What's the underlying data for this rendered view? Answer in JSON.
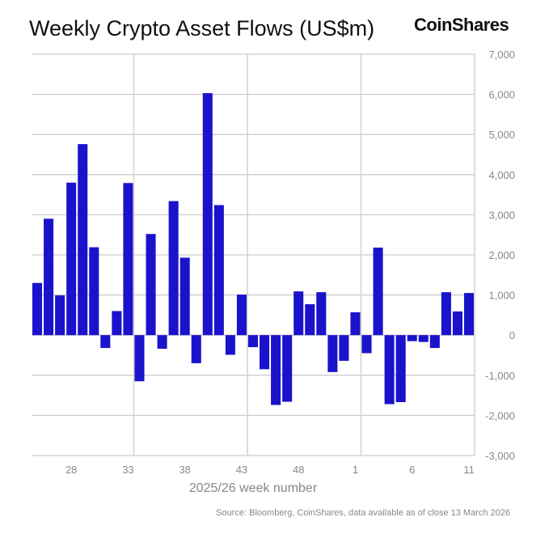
{
  "brand": "CoinShares",
  "source": "Source: Bloomberg, CoinShares, data available as of close 13 March 2026",
  "colors": {
    "bar": "#1b12cc",
    "grid": "#cccccc",
    "text": "#888888"
  },
  "chart_data": {
    "type": "bar",
    "title": "Weekly Crypto Asset Flows (US$m)",
    "xlabel": "2025/26 week number",
    "ylabel": "",
    "ylim": [
      -3000,
      7000
    ],
    "y_ticks": [
      -3000,
      -2000,
      -1000,
      0,
      1000,
      2000,
      3000,
      4000,
      5000,
      6000,
      7000
    ],
    "y_tick_labels": [
      "-3,000",
      "-2,000",
      "-1,000",
      "0",
      "1,000",
      "2,000",
      "3,000",
      "4,000",
      "5,000",
      "6,000",
      "7,000"
    ],
    "x_tick_labels": [
      "28",
      "33",
      "38",
      "43",
      "48",
      "1",
      "6",
      "11"
    ],
    "y_axis_position": "right",
    "grid": true,
    "categories": [
      "25",
      "26",
      "27",
      "28",
      "29",
      "30",
      "31",
      "32",
      "33",
      "34",
      "35",
      "36",
      "37",
      "38",
      "39",
      "40",
      "41",
      "42",
      "43",
      "44",
      "45",
      "46",
      "47",
      "48",
      "49",
      "50",
      "51",
      "52",
      "1",
      "2",
      "3",
      "4",
      "5",
      "6",
      "7",
      "8",
      "9",
      "10",
      "11"
    ],
    "values": [
      1300,
      2900,
      990,
      3800,
      4760,
      2190,
      -320,
      600,
      3790,
      -1150,
      2520,
      -340,
      3340,
      1930,
      -700,
      6030,
      3240,
      -490,
      1010,
      -300,
      -850,
      -1740,
      -1660,
      1090,
      770,
      1070,
      -920,
      -640,
      570,
      -450,
      2180,
      -1720,
      -1670,
      -150,
      -170,
      -320,
      1070,
      590,
      1050
    ]
  }
}
